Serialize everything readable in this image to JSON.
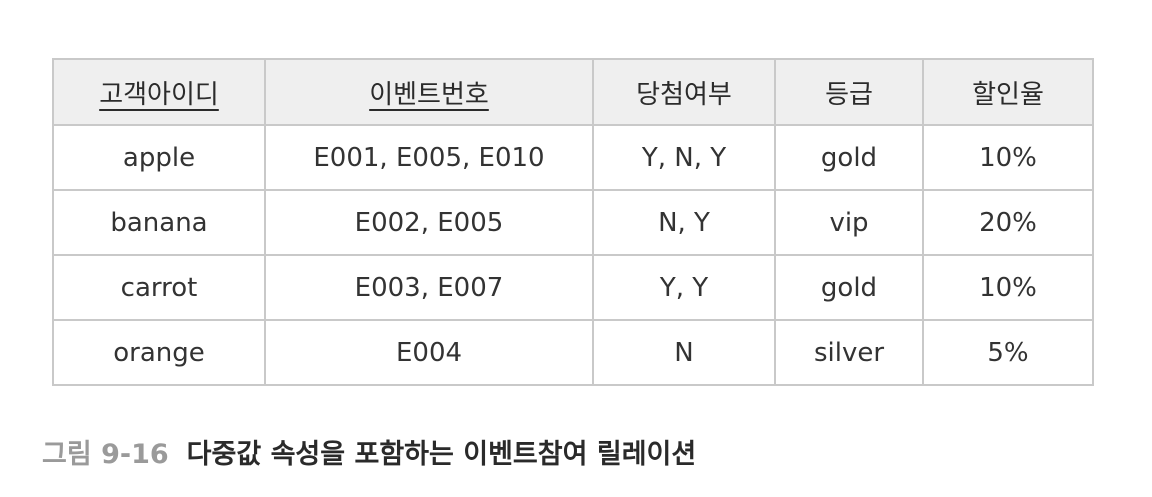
{
  "table": {
    "headers": [
      "고객아이디",
      "이벤트번호",
      "당첨여부",
      "등급",
      "할인율"
    ],
    "rows": [
      [
        "apple",
        "E001, E005, E010",
        "Y, N, Y",
        "gold",
        "10%"
      ],
      [
        "banana",
        "E002, E005",
        "N, Y",
        "vip",
        "20%"
      ],
      [
        "carrot",
        "E003, E007",
        "Y, Y",
        "gold",
        "10%"
      ],
      [
        "orange",
        "E004",
        "N",
        "silver",
        "5%"
      ]
    ]
  },
  "caption": {
    "label": "그림 9-16",
    "text": "다중값 속성을 포함하는 이벤트참여 릴레이션"
  }
}
